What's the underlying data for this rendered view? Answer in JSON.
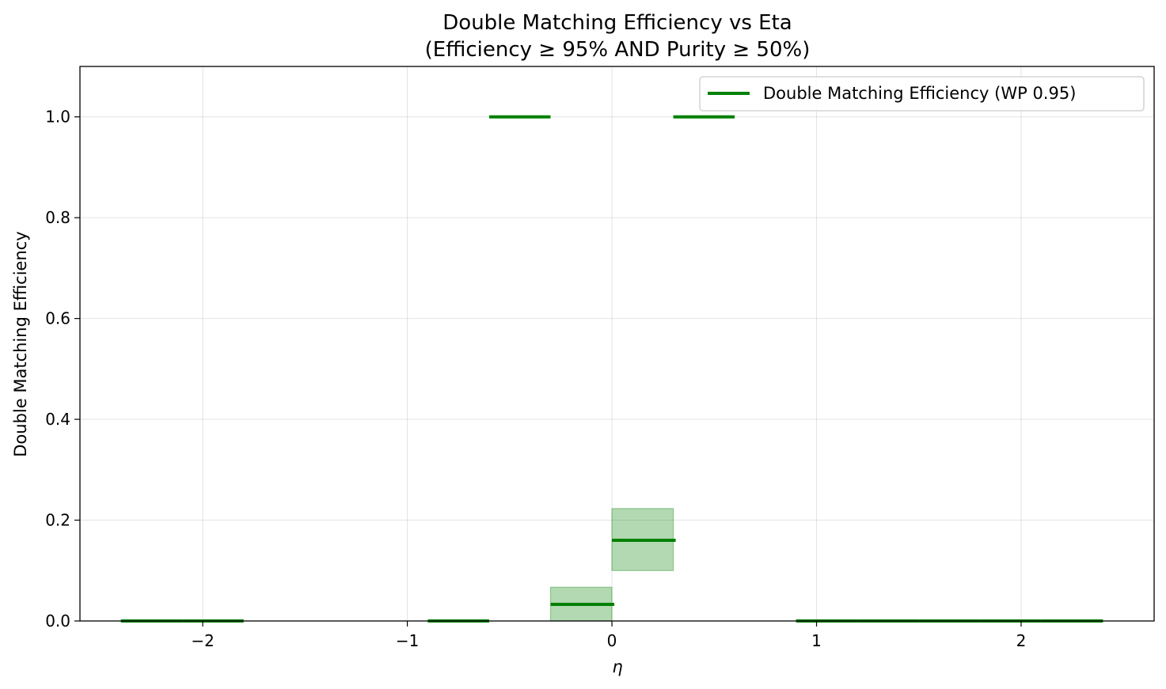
{
  "chart_data": {
    "type": "step",
    "title": "Double Matching Efficiency vs Eta",
    "subtitle": "(Efficiency ≥ 95% AND Purity ≥ 50%)",
    "xlabel": "η",
    "ylabel": "Double Matching Efficiency",
    "xlim": [
      -2.6,
      2.65
    ],
    "ylim": [
      0,
      1.1
    ],
    "grid": true,
    "legend_placement": "top-right",
    "x_ticks": [
      -2,
      -1,
      0,
      1,
      2
    ],
    "x_tick_labels": [
      "−2",
      "−1",
      "0",
      "1",
      "2"
    ],
    "y_ticks": [
      0.0,
      0.2,
      0.4,
      0.6,
      0.8,
      1.0
    ],
    "y_tick_labels": [
      "0.0",
      "0.2",
      "0.4",
      "0.6",
      "0.8",
      "1.0"
    ],
    "colors": {
      "line": "#008000",
      "band": "#008000"
    },
    "series": [
      {
        "name": "Double Matching Efficiency (WP 0.95)",
        "bins": [
          {
            "x0": -2.4,
            "x1": -2.1,
            "y": 0.0
          },
          {
            "x0": -2.1,
            "x1": -1.8,
            "y": 0.0
          },
          {
            "x0": -0.9,
            "x1": -0.6,
            "y": 0.0
          },
          {
            "x0": -0.6,
            "x1": -0.3,
            "y": 1.0
          },
          {
            "x0": -0.3,
            "x1": 0.0,
            "y": 0.033,
            "err_low": 0.0,
            "err_high": 0.067
          },
          {
            "x0": 0.0,
            "x1": 0.3,
            "y": 0.16,
            "err_low": 0.1,
            "err_high": 0.223
          },
          {
            "x0": 0.3,
            "x1": 0.6,
            "y": 1.0
          },
          {
            "x0": 0.9,
            "x1": 1.2,
            "y": 0.0
          },
          {
            "x0": 1.2,
            "x1": 1.5,
            "y": 0.0
          },
          {
            "x0": 1.5,
            "x1": 1.8,
            "y": 0.0
          },
          {
            "x0": 1.8,
            "x1": 2.1,
            "y": 0.0
          },
          {
            "x0": 2.1,
            "x1": 2.4,
            "y": 0.0
          }
        ]
      }
    ]
  }
}
